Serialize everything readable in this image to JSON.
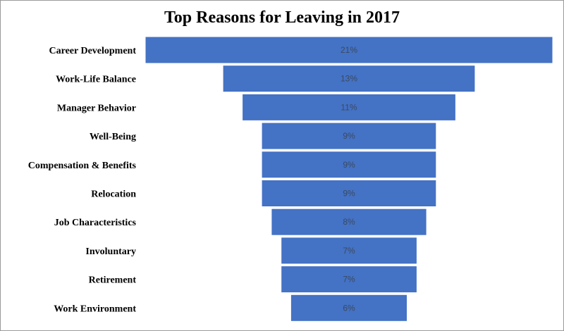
{
  "chart_data": {
    "type": "bar",
    "orientation": "horizontal-funnel",
    "title": "Top Reasons for Leaving in 2017",
    "categories": [
      "Career Development",
      "Work-Life Balance",
      "Manager Behavior",
      "Well-Being",
      "Compensation & Benefits",
      "Relocation",
      "Job Characteristics",
      "Involuntary",
      "Retirement",
      "Work Environment"
    ],
    "values": [
      21,
      13,
      11,
      9,
      9,
      9,
      8,
      7,
      7,
      6
    ],
    "data_labels": [
      "21%",
      "13%",
      "11%",
      "9%",
      "9%",
      "9%",
      "8%",
      "7%",
      "7%",
      "6%"
    ],
    "unit": "%",
    "bar_color": "#4472c4",
    "grid": false,
    "legend": "none"
  }
}
